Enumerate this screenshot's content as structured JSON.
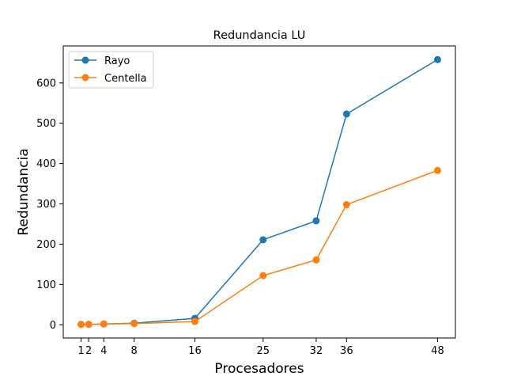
{
  "chart_data": {
    "type": "line",
    "title": "Redundancia LU",
    "xlabel": "Procesadores",
    "ylabel": "Redundancia",
    "x": [
      1,
      2,
      4,
      8,
      16,
      25,
      32,
      36,
      48
    ],
    "x_ticks": [
      1,
      2,
      4,
      8,
      16,
      25,
      32,
      36,
      48
    ],
    "y_ticks": [
      0,
      100,
      200,
      300,
      400,
      500,
      600
    ],
    "xlim": [
      -1.35,
      50.35
    ],
    "ylim": [
      -32.9,
      691.9
    ],
    "grid": false,
    "legend_position": "top-left",
    "series": [
      {
        "name": "Rayo",
        "color": "#1f77b4",
        "values": [
          1,
          1,
          2,
          4,
          16,
          211,
          258,
          523,
          658
        ]
      },
      {
        "name": "Centella",
        "color": "#ff7f0e",
        "values": [
          1,
          1,
          2,
          3,
          8,
          122,
          161,
          298,
          383
        ]
      }
    ]
  }
}
